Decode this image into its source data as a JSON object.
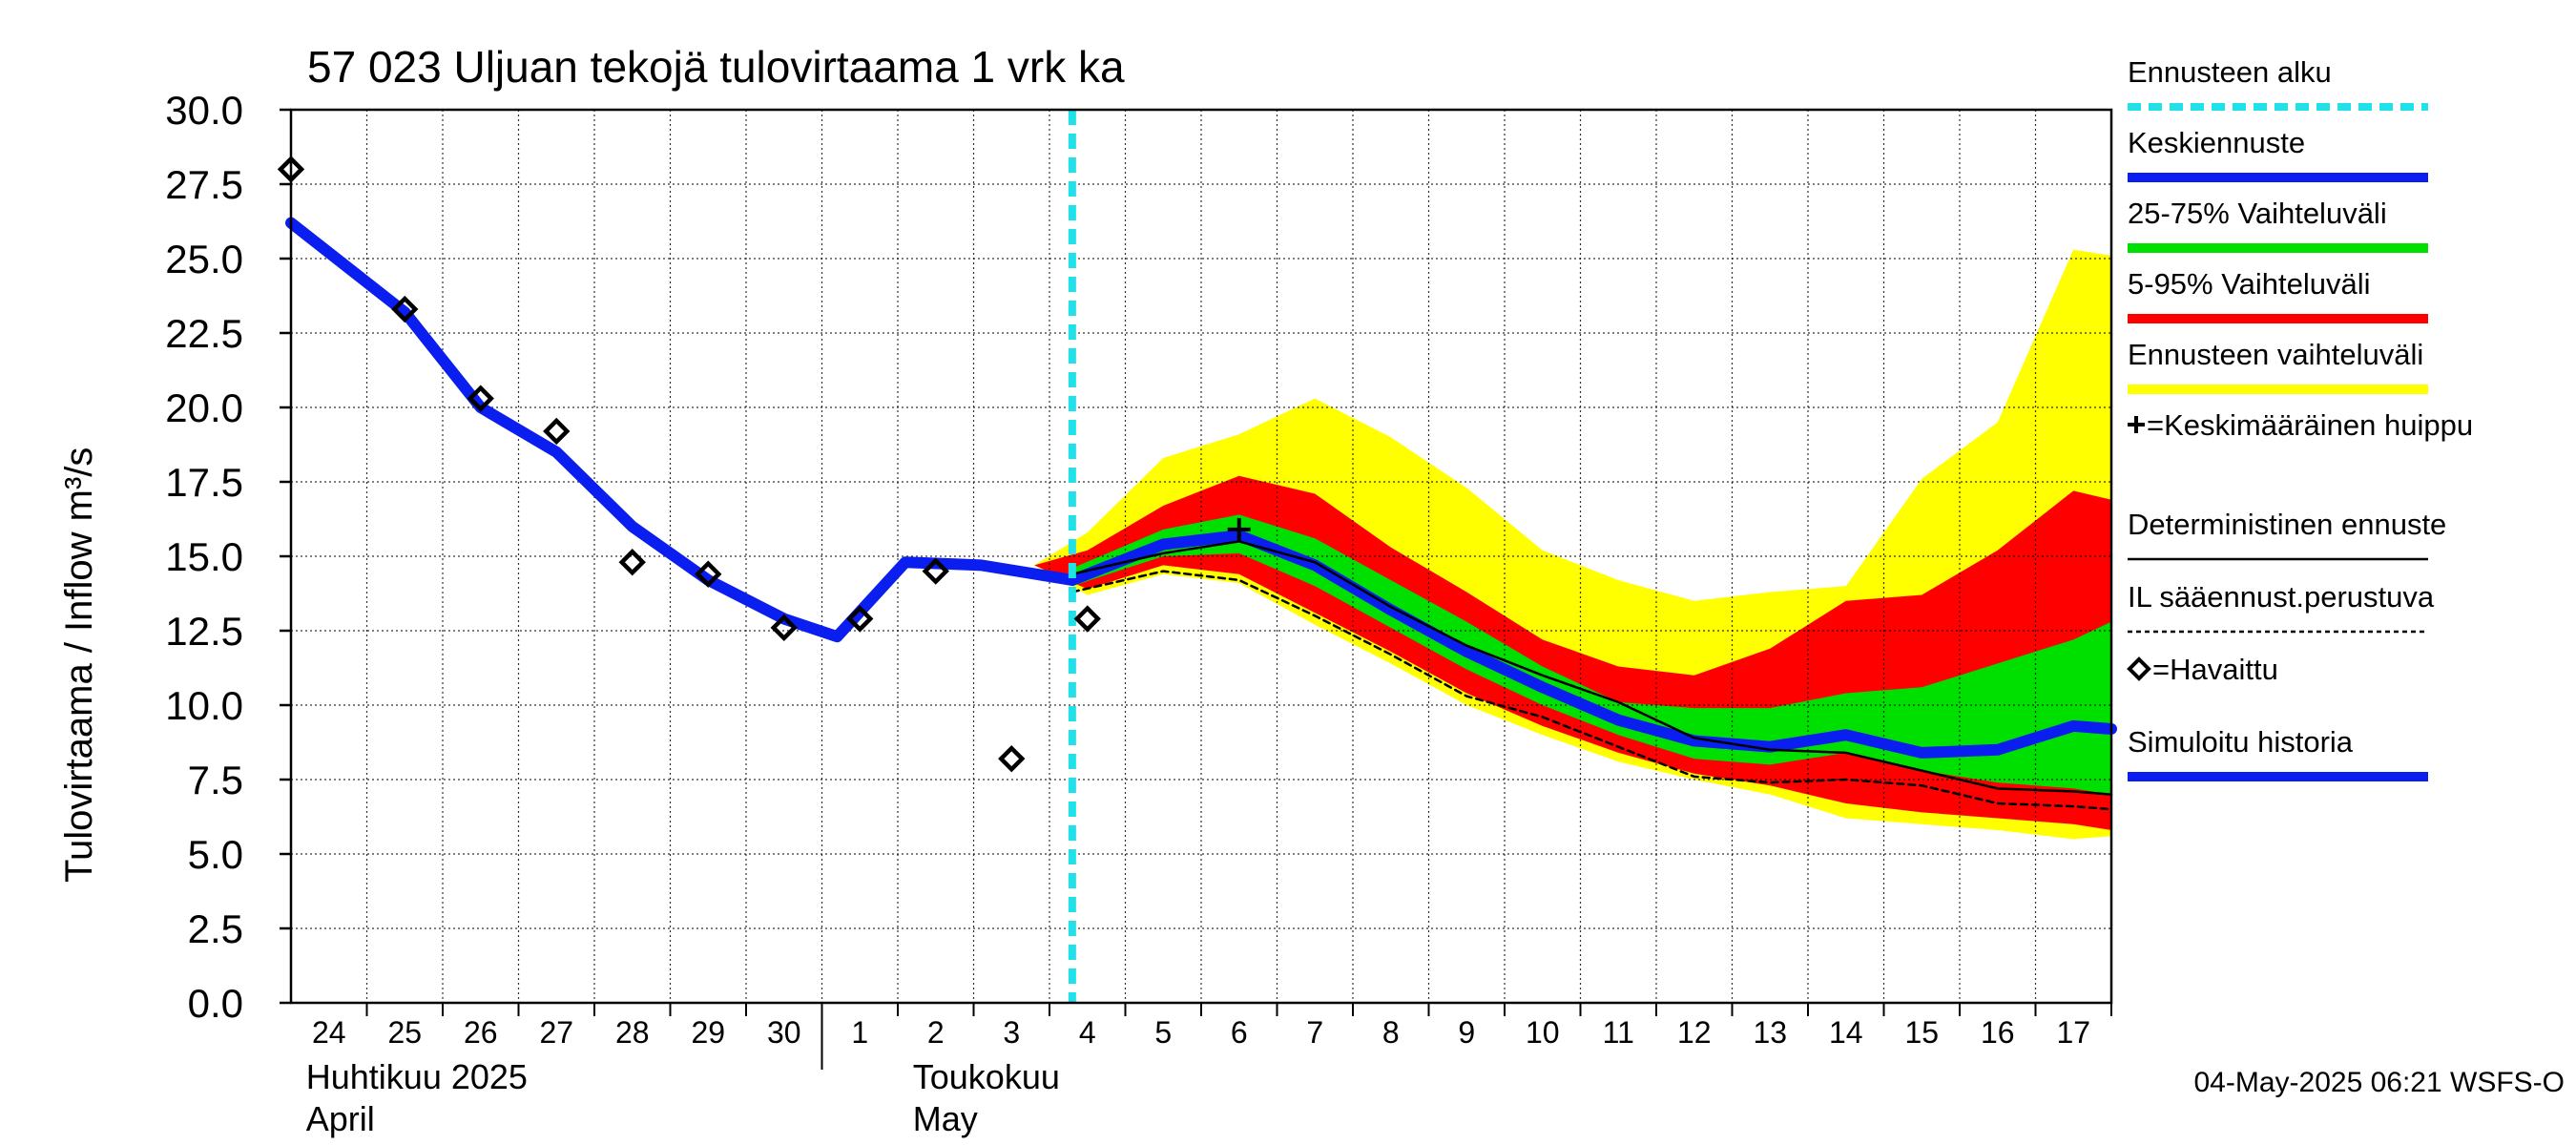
{
  "chart_data": {
    "type": "line",
    "title": "57 023 Uljuan tekojä tulovirtaama 1 vrk ka",
    "ylabel": "Tulovirtaama / Inflow   m³/s",
    "ylim": [
      0,
      30
    ],
    "yticks": [
      "0.0",
      "2.5",
      "5.0",
      "7.5",
      "10.0",
      "12.5",
      "15.0",
      "17.5",
      "20.0",
      "22.5",
      "25.0",
      "27.5",
      "30.0"
    ],
    "xlim": [
      -0.5,
      23.5
    ],
    "xticks": [
      {
        "x": 0,
        "label": "24"
      },
      {
        "x": 1,
        "label": "25"
      },
      {
        "x": 2,
        "label": "26"
      },
      {
        "x": 3,
        "label": "27"
      },
      {
        "x": 4,
        "label": "28"
      },
      {
        "x": 5,
        "label": "29"
      },
      {
        "x": 6,
        "label": "30"
      },
      {
        "x": 7,
        "label": "1"
      },
      {
        "x": 8,
        "label": "2"
      },
      {
        "x": 9,
        "label": "3"
      },
      {
        "x": 10,
        "label": "4"
      },
      {
        "x": 11,
        "label": "5"
      },
      {
        "x": 12,
        "label": "6"
      },
      {
        "x": 13,
        "label": "7"
      },
      {
        "x": 14,
        "label": "8"
      },
      {
        "x": 15,
        "label": "9"
      },
      {
        "x": 16,
        "label": "10"
      },
      {
        "x": 17,
        "label": "11"
      },
      {
        "x": 18,
        "label": "12"
      },
      {
        "x": 19,
        "label": "13"
      },
      {
        "x": 20,
        "label": "14"
      },
      {
        "x": 21,
        "label": "15"
      },
      {
        "x": 22,
        "label": "16"
      },
      {
        "x": 23,
        "label": "17"
      }
    ],
    "month_labels": [
      {
        "x": 0,
        "line1": "Huhtikuu  2025",
        "line2": "April"
      },
      {
        "x": 8,
        "line1": "Toukokuu",
        "line2": "May"
      }
    ],
    "month_divider_x": 6.5,
    "forecast_start_x": 9.8,
    "grid": true,
    "legend_position": "right",
    "legend": [
      {
        "label": "Ennusteen alku",
        "color": "#22e0e8",
        "style": "dashed"
      },
      {
        "label": "Keskiennuste",
        "color": "#0a1ef0",
        "style": "line"
      },
      {
        "label": "25-75% Vaihteluväli",
        "color": "#00e000",
        "style": "thick"
      },
      {
        "label": "5-95% Vaihteluväli",
        "color": "#ff0000",
        "style": "thick"
      },
      {
        "label": "Ennusteen vaihteluväli",
        "color": "#ffff00",
        "style": "thick"
      },
      {
        "label": "+=Keskimääräinen huippu",
        "color": "#000000",
        "style": "none"
      },
      {
        "label": "Deterministinen ennuste",
        "color": "#000000",
        "style": "thin"
      },
      {
        "label": "IL sääennust.perustuva",
        "color": "#000000",
        "style": "dotted"
      },
      {
        "label": "=Havaittu",
        "color": "#000000",
        "style": "none"
      },
      {
        "label": "Simuloitu historia",
        "color": "#0a1ef0",
        "style": "line"
      }
    ],
    "series": [
      {
        "name": "Simuloitu historia",
        "color": "#0a1ef0",
        "x": [
          -0.5,
          1,
          2,
          3,
          4,
          5,
          6,
          6.7,
          7.6,
          8.6,
          9.8
        ],
        "y": [
          26.2,
          23.2,
          20.0,
          18.5,
          16.0,
          14.2,
          12.9,
          12.3,
          14.8,
          14.7,
          14.2
        ]
      },
      {
        "name": "Keskiennuste",
        "color": "#0a1ef0",
        "x": [
          9.8,
          11,
          12,
          13,
          14,
          15,
          16,
          17,
          18,
          19,
          20,
          21,
          22,
          23,
          24
        ],
        "y": [
          14.2,
          15.4,
          15.7,
          14.7,
          13.2,
          11.8,
          10.6,
          9.5,
          8.8,
          8.6,
          9.0,
          8.4,
          8.5,
          9.3,
          9.2
        ]
      },
      {
        "name": "Deterministinen ennuste",
        "color": "#000000",
        "x": [
          9.8,
          11,
          12,
          13,
          14,
          15,
          16,
          17,
          18,
          19,
          20,
          21,
          22,
          23,
          24
        ],
        "y": [
          14.4,
          15.1,
          15.5,
          14.8,
          13.3,
          12.0,
          11.0,
          10.1,
          8.9,
          8.5,
          8.4,
          7.8,
          7.2,
          7.1,
          7.0
        ]
      },
      {
        "name": "IL sääennust.perustuva",
        "color": "#000000",
        "x": [
          9.8,
          11,
          12,
          13,
          14,
          15,
          16,
          17,
          18,
          19,
          20,
          21,
          22,
          23,
          24
        ],
        "y": [
          13.8,
          14.5,
          14.2,
          13.0,
          11.7,
          10.3,
          9.6,
          8.6,
          7.6,
          7.4,
          7.5,
          7.3,
          6.7,
          6.6,
          6.5
        ]
      }
    ],
    "bands": [
      {
        "name": "Ennusteen vaihteluväli",
        "color": "#ffff00",
        "x": [
          9.3,
          10,
          11,
          12,
          13,
          14,
          15,
          16,
          17,
          18,
          19,
          20,
          21,
          22,
          23,
          24
        ],
        "upper": [
          14.7,
          15.8,
          18.3,
          19.1,
          20.3,
          19.0,
          17.3,
          15.2,
          14.2,
          13.5,
          13.8,
          14.0,
          17.6,
          19.5,
          25.3,
          25.1
        ],
        "lower": [
          14.7,
          13.7,
          14.4,
          14.1,
          12.7,
          11.4,
          10.0,
          9.0,
          8.1,
          7.5,
          7.0,
          6.2,
          6.0,
          5.8,
          5.5,
          5.6
        ]
      },
      {
        "name": "5-95% Vaihteluväli",
        "color": "#ff0000",
        "x": [
          9.3,
          10,
          11,
          12,
          13,
          14,
          15,
          16,
          17,
          18,
          19,
          20,
          21,
          22,
          23,
          24
        ],
        "upper": [
          14.7,
          15.2,
          16.7,
          17.7,
          17.1,
          15.3,
          13.8,
          12.2,
          11.3,
          11.0,
          11.9,
          13.5,
          13.7,
          15.2,
          17.2,
          16.9
        ],
        "lower": [
          14.7,
          13.9,
          14.7,
          14.4,
          13.1,
          11.8,
          10.4,
          9.3,
          8.4,
          7.7,
          7.3,
          6.7,
          6.4,
          6.2,
          6.0,
          5.8
        ]
      },
      {
        "name": "25-75% Vaihteluväli",
        "color": "#00e000",
        "x": [
          9.8,
          11,
          12,
          13,
          14,
          15,
          16,
          17,
          18,
          19,
          20,
          21,
          22,
          23,
          24
        ],
        "upper": [
          14.6,
          15.9,
          16.4,
          15.6,
          14.2,
          12.8,
          11.3,
          10.1,
          9.9,
          9.9,
          10.4,
          10.6,
          11.4,
          12.2,
          12.8
        ],
        "lower": [
          14.0,
          15.0,
          15.1,
          14.0,
          12.6,
          11.2,
          10.0,
          9.0,
          8.2,
          8.0,
          8.4,
          7.8,
          7.4,
          7.2,
          7.0
        ]
      }
    ],
    "observed": {
      "name": "=Havaittu",
      "x": [
        -0.5,
        1,
        2,
        3,
        4,
        5,
        6,
        7,
        8,
        9,
        10
      ],
      "y": [
        28.0,
        23.3,
        20.3,
        19.2,
        14.8,
        14.4,
        12.6,
        12.9,
        14.5,
        8.2,
        12.9
      ]
    },
    "mean_peak": {
      "name": "Keskimääräinen huippu",
      "x": 12,
      "y": 15.9
    },
    "timestamp": "04-May-2025 06:21 WSFS-O"
  }
}
